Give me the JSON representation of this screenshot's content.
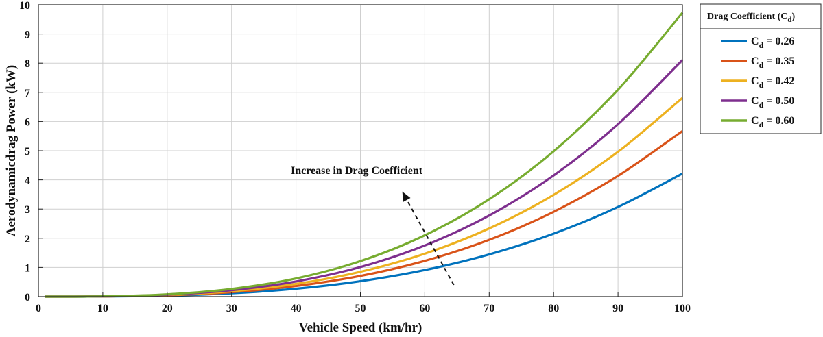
{
  "chart_data": {
    "type": "line",
    "xlabel": "Vehicle Speed (km/hr)",
    "ylabel": "Aerodynamicdrag Power (kW)",
    "xlim": [
      0,
      100
    ],
    "ylim": [
      0,
      10
    ],
    "xticks": [
      0,
      10,
      20,
      30,
      40,
      50,
      60,
      70,
      80,
      90,
      100
    ],
    "yticks": [
      0,
      1,
      2,
      3,
      4,
      5,
      6,
      7,
      8,
      9,
      10
    ],
    "grid": true,
    "x": [
      1,
      10,
      20,
      30,
      40,
      50,
      60,
      70,
      80,
      90,
      100
    ],
    "legend": {
      "title_main": "Drag Coefficient (C",
      "title_sub": "d",
      "title_end": ")",
      "placement": "outside-right-top"
    },
    "series": [
      {
        "label_main": "C",
        "label_sub": "d",
        "label_end": " = 0.26",
        "color": "#0072BD",
        "values": [
          0.0,
          0.004,
          0.034,
          0.114,
          0.27,
          0.527,
          0.91,
          1.446,
          2.158,
          3.073,
          4.215
        ]
      },
      {
        "label_main": "C",
        "label_sub": "d",
        "label_end": " = 0.35",
        "color": "#D95319",
        "values": [
          0.0,
          0.006,
          0.045,
          0.153,
          0.363,
          0.709,
          1.226,
          1.946,
          2.905,
          4.136,
          5.674
        ]
      },
      {
        "label_main": "C",
        "label_sub": "d",
        "label_end": " = 0.42",
        "color": "#EDB120",
        "values": [
          0.0,
          0.007,
          0.054,
          0.184,
          0.436,
          0.851,
          1.471,
          2.336,
          3.486,
          4.964,
          6.809
        ]
      },
      {
        "label_main": "C",
        "label_sub": "d",
        "label_end": " = 0.50",
        "color": "#7E2F8E",
        "values": [
          0.0,
          0.008,
          0.065,
          0.219,
          0.519,
          1.013,
          1.751,
          2.78,
          4.15,
          5.909,
          8.106
        ]
      },
      {
        "label_main": "C",
        "label_sub": "d",
        "label_end": " = 0.60",
        "color": "#77AC30",
        "values": [
          0.0,
          0.01,
          0.078,
          0.263,
          0.622,
          1.216,
          2.101,
          3.336,
          4.98,
          7.091,
          9.727
        ]
      }
    ],
    "annotation": {
      "text": "Increase in Drag Coefficient",
      "anchor_x": 41,
      "anchor_y": 4.0,
      "arrow_from": [
        64.5,
        0.4
      ],
      "arrow_to": [
        56.5,
        3.6
      ]
    }
  }
}
